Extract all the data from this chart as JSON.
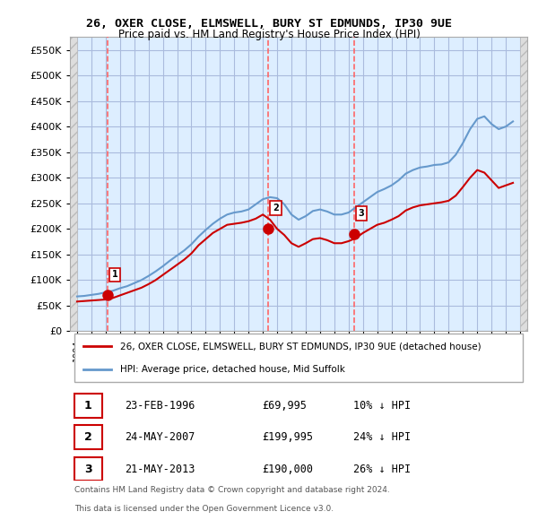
{
  "title": "26, OXER CLOSE, ELMSWELL, BURY ST EDMUNDS, IP30 9UE",
  "subtitle": "Price paid vs. HM Land Registry's House Price Index (HPI)",
  "legend_line1": "26, OXER CLOSE, ELMSWELL, BURY ST EDMUNDS, IP30 9UE (detached house)",
  "legend_line2": "HPI: Average price, detached house, Mid Suffolk",
  "footer1": "Contains HM Land Registry data © Crown copyright and database right 2024.",
  "footer2": "This data is licensed under the Open Government Licence v3.0.",
  "transactions": [
    {
      "num": 1,
      "date": "23-FEB-1996",
      "price": "£69,995",
      "hpi": "10% ↓ HPI",
      "year": 1996.13
    },
    {
      "num": 2,
      "date": "24-MAY-2007",
      "price": "£199,995",
      "hpi": "24% ↓ HPI",
      "year": 2007.39
    },
    {
      "num": 3,
      "date": "21-MAY-2013",
      "price": "£190,000",
      "hpi": "26% ↓ HPI",
      "year": 2013.39
    }
  ],
  "ylim": [
    0,
    575000
  ],
  "xlim": [
    1993.5,
    2025.5
  ],
  "hpi_color": "#6699cc",
  "price_color": "#cc0000",
  "marker_color": "#cc0000",
  "grid_color": "#aabbdd",
  "bg_color": "#ddeeff",
  "hatch_color": "#cccccc",
  "hatch_bg": "#e8e8e8",
  "red_dashed_color": "#ff6666",
  "hpi_data_x": [
    1994,
    1994.5,
    1995,
    1995.5,
    1996,
    1996.5,
    1997,
    1997.5,
    1998,
    1998.5,
    1999,
    1999.5,
    2000,
    2000.5,
    2001,
    2001.5,
    2002,
    2002.5,
    2003,
    2003.5,
    2004,
    2004.5,
    2005,
    2005.5,
    2006,
    2006.5,
    2007,
    2007.5,
    2008,
    2008.5,
    2009,
    2009.5,
    2010,
    2010.5,
    2011,
    2011.5,
    2012,
    2012.5,
    2013,
    2013.5,
    2014,
    2014.5,
    2015,
    2015.5,
    2016,
    2016.5,
    2017,
    2017.5,
    2018,
    2018.5,
    2019,
    2019.5,
    2020,
    2020.5,
    2021,
    2021.5,
    2022,
    2022.5,
    2023,
    2023.5,
    2024,
    2024.5
  ],
  "hpi_data_y": [
    68000,
    69000,
    71000,
    73000,
    76000,
    79000,
    84000,
    88000,
    94000,
    100000,
    108000,
    117000,
    127000,
    138000,
    148000,
    158000,
    170000,
    185000,
    198000,
    210000,
    220000,
    228000,
    232000,
    234000,
    238000,
    248000,
    258000,
    262000,
    260000,
    248000,
    228000,
    218000,
    225000,
    235000,
    238000,
    234000,
    228000,
    228000,
    232000,
    242000,
    252000,
    262000,
    272000,
    278000,
    285000,
    295000,
    308000,
    315000,
    320000,
    322000,
    325000,
    326000,
    330000,
    345000,
    368000,
    395000,
    415000,
    420000,
    405000,
    395000,
    400000,
    410000
  ],
  "price_data_x": [
    1994,
    1994.5,
    1995,
    1995.5,
    1996,
    1996.5,
    1997,
    1997.5,
    1998,
    1998.5,
    1999,
    1999.5,
    2000,
    2000.5,
    2001,
    2001.5,
    2002,
    2002.5,
    2003,
    2003.5,
    2004,
    2004.5,
    2005,
    2005.5,
    2006,
    2006.5,
    2007,
    2007.5,
    2008,
    2008.5,
    2009,
    2009.5,
    2010,
    2010.5,
    2011,
    2011.5,
    2012,
    2012.5,
    2013,
    2013.5,
    2014,
    2014.5,
    2015,
    2015.5,
    2016,
    2016.5,
    2017,
    2017.5,
    2018,
    2018.5,
    2019,
    2019.5,
    2020,
    2020.5,
    2021,
    2021.5,
    2022,
    2022.5,
    2023,
    2023.5,
    2024,
    2024.5
  ],
  "price_data_y": [
    58000,
    59000,
    60000,
    61000,
    62000,
    65000,
    70000,
    75000,
    80000,
    85000,
    92000,
    100000,
    110000,
    120000,
    130000,
    140000,
    152000,
    168000,
    180000,
    192000,
    200000,
    208000,
    210000,
    212000,
    215000,
    220000,
    228000,
    218000,
    200000,
    188000,
    172000,
    165000,
    172000,
    180000,
    182000,
    178000,
    172000,
    172000,
    176000,
    182000,
    192000,
    200000,
    208000,
    212000,
    218000,
    225000,
    236000,
    242000,
    246000,
    248000,
    250000,
    252000,
    255000,
    265000,
    282000,
    300000,
    315000,
    310000,
    295000,
    280000,
    285000,
    290000
  ]
}
